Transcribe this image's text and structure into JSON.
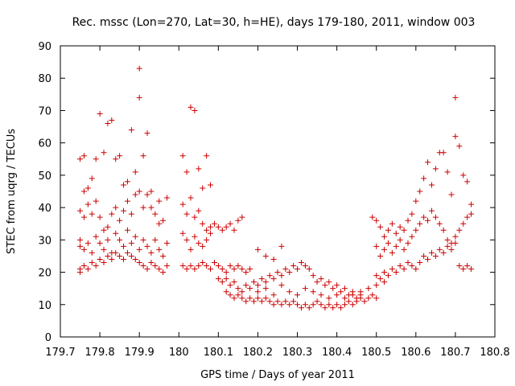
{
  "chart_data": {
    "type": "scatter",
    "title": "Rec. mssc (Lon=270, Lat=30, h=HE), days 179-180, 2011, window 003",
    "xlabel": "GPS time / Days of year 2011",
    "ylabel": "STEC from uqrg / TECUs",
    "xlim": [
      179.7,
      180.8
    ],
    "ylim": [
      0,
      90
    ],
    "x_ticks": [
      "179.7",
      "179.8",
      "179.9",
      "180",
      "180.1",
      "180.2",
      "180.3",
      "180.4",
      "180.5",
      "180.6",
      "180.7",
      "180.8"
    ],
    "y_ticks": [
      "0",
      "10",
      "20",
      "30",
      "40",
      "50",
      "60",
      "70",
      "80",
      "90"
    ],
    "grid": false,
    "legend": "none",
    "marker": "plus",
    "color": "#cc0000",
    "series": [
      {
        "points": [
          [
            179.75,
            55
          ],
          [
            179.76,
            56
          ],
          [
            179.77,
            46
          ],
          [
            179.76,
            45
          ],
          [
            179.78,
            49
          ],
          [
            179.79,
            55
          ],
          [
            179.8,
            69
          ],
          [
            179.81,
            57
          ],
          [
            179.82,
            66
          ],
          [
            179.83,
            67
          ],
          [
            179.84,
            55
          ],
          [
            179.85,
            56
          ],
          [
            179.86,
            47
          ],
          [
            179.87,
            48
          ],
          [
            179.88,
            64
          ],
          [
            179.89,
            51
          ],
          [
            179.9,
            83
          ],
          [
            179.9,
            74
          ],
          [
            179.91,
            56
          ],
          [
            179.92,
            63
          ],
          [
            179.93,
            45
          ],
          [
            179.95,
            42
          ],
          [
            179.97,
            43
          ],
          [
            179.75,
            39
          ],
          [
            179.76,
            37
          ],
          [
            179.77,
            41
          ],
          [
            179.78,
            38
          ],
          [
            179.79,
            42
          ],
          [
            179.8,
            37
          ],
          [
            179.81,
            33
          ],
          [
            179.82,
            34
          ],
          [
            179.83,
            38
          ],
          [
            179.84,
            40
          ],
          [
            179.85,
            36
          ],
          [
            179.86,
            39
          ],
          [
            179.87,
            42
          ],
          [
            179.88,
            38
          ],
          [
            179.89,
            44
          ],
          [
            179.9,
            45
          ],
          [
            179.91,
            40
          ],
          [
            179.92,
            44
          ],
          [
            179.93,
            40
          ],
          [
            179.94,
            38
          ],
          [
            179.95,
            35
          ],
          [
            179.96,
            36
          ],
          [
            179.75,
            30
          ],
          [
            179.75,
            28
          ],
          [
            179.76,
            27
          ],
          [
            179.77,
            29
          ],
          [
            179.78,
            26
          ],
          [
            179.79,
            31
          ],
          [
            179.8,
            29
          ],
          [
            179.81,
            27
          ],
          [
            179.82,
            30
          ],
          [
            179.83,
            26
          ],
          [
            179.84,
            32
          ],
          [
            179.85,
            30
          ],
          [
            179.86,
            28
          ],
          [
            179.87,
            33
          ],
          [
            179.88,
            29
          ],
          [
            179.89,
            31
          ],
          [
            179.9,
            27
          ],
          [
            179.91,
            30
          ],
          [
            179.92,
            28
          ],
          [
            179.93,
            26
          ],
          [
            179.94,
            30
          ],
          [
            179.95,
            27
          ],
          [
            179.96,
            25
          ],
          [
            179.97,
            29
          ],
          [
            179.75,
            21
          ],
          [
            179.75,
            20
          ],
          [
            179.76,
            22
          ],
          [
            179.77,
            21
          ],
          [
            179.78,
            23
          ],
          [
            179.79,
            22
          ],
          [
            179.8,
            24
          ],
          [
            179.81,
            23
          ],
          [
            179.82,
            25
          ],
          [
            179.83,
            24
          ],
          [
            179.84,
            26
          ],
          [
            179.85,
            25
          ],
          [
            179.86,
            24
          ],
          [
            179.87,
            26
          ],
          [
            179.88,
            25
          ],
          [
            179.89,
            24
          ],
          [
            179.9,
            23
          ],
          [
            179.91,
            22
          ],
          [
            179.92,
            21
          ],
          [
            179.93,
            23
          ],
          [
            179.94,
            22
          ],
          [
            179.95,
            21
          ],
          [
            179.96,
            20
          ],
          [
            179.97,
            22
          ],
          [
            180.01,
            56
          ],
          [
            180.02,
            51
          ],
          [
            180.03,
            71
          ],
          [
            180.04,
            70
          ],
          [
            180.05,
            52
          ],
          [
            180.06,
            46
          ],
          [
            180.07,
            56
          ],
          [
            180.08,
            47
          ],
          [
            180.01,
            41
          ],
          [
            180.02,
            38
          ],
          [
            180.03,
            43
          ],
          [
            180.04,
            37
          ],
          [
            180.05,
            39
          ],
          [
            180.06,
            35
          ],
          [
            180.07,
            33
          ],
          [
            180.08,
            34
          ],
          [
            180.09,
            35
          ],
          [
            180.1,
            34
          ],
          [
            180.11,
            33
          ],
          [
            180.12,
            34
          ],
          [
            180.13,
            35
          ],
          [
            180.14,
            33
          ],
          [
            180.15,
            36
          ],
          [
            180.16,
            37
          ],
          [
            180.01,
            32
          ],
          [
            180.02,
            30
          ],
          [
            180.03,
            27
          ],
          [
            180.04,
            31
          ],
          [
            180.05,
            29
          ],
          [
            180.06,
            28
          ],
          [
            180.07,
            30
          ],
          [
            180.08,
            32
          ],
          [
            180.01,
            22
          ],
          [
            180.02,
            21
          ],
          [
            180.03,
            22
          ],
          [
            180.04,
            21
          ],
          [
            180.05,
            22
          ],
          [
            180.06,
            23
          ],
          [
            180.07,
            22
          ],
          [
            180.08,
            21
          ],
          [
            180.09,
            23
          ],
          [
            180.1,
            22
          ],
          [
            180.11,
            21
          ],
          [
            180.12,
            20
          ],
          [
            180.13,
            22
          ],
          [
            180.14,
            21
          ],
          [
            180.15,
            22
          ],
          [
            180.16,
            21
          ],
          [
            180.17,
            20
          ],
          [
            180.18,
            21
          ],
          [
            180.2,
            27
          ],
          [
            180.22,
            25
          ],
          [
            180.24,
            24
          ],
          [
            180.26,
            28
          ],
          [
            180.1,
            18
          ],
          [
            180.11,
            17
          ],
          [
            180.12,
            18
          ],
          [
            180.13,
            16
          ],
          [
            180.14,
            17
          ],
          [
            180.15,
            15
          ],
          [
            180.16,
            14
          ],
          [
            180.17,
            16
          ],
          [
            180.18,
            15
          ],
          [
            180.19,
            17
          ],
          [
            180.2,
            16
          ],
          [
            180.21,
            18
          ],
          [
            180.22,
            17
          ],
          [
            180.23,
            19
          ],
          [
            180.24,
            18
          ],
          [
            180.25,
            20
          ],
          [
            180.26,
            19
          ],
          [
            180.27,
            21
          ],
          [
            180.28,
            20
          ],
          [
            180.29,
            22
          ],
          [
            180.3,
            21
          ],
          [
            180.31,
            23
          ],
          [
            180.32,
            22
          ],
          [
            180.33,
            21
          ],
          [
            180.34,
            19
          ],
          [
            180.35,
            17
          ],
          [
            180.36,
            18
          ],
          [
            180.37,
            16
          ],
          [
            180.38,
            17
          ],
          [
            180.39,
            15
          ],
          [
            180.4,
            16
          ],
          [
            180.41,
            14
          ],
          [
            180.42,
            15
          ],
          [
            180.43,
            13
          ],
          [
            180.44,
            14
          ],
          [
            180.45,
            12
          ],
          [
            180.46,
            13
          ],
          [
            180.12,
            14
          ],
          [
            180.13,
            13
          ],
          [
            180.14,
            12
          ],
          [
            180.15,
            13
          ],
          [
            180.16,
            12
          ],
          [
            180.17,
            11
          ],
          [
            180.18,
            12
          ],
          [
            180.19,
            11
          ],
          [
            180.2,
            12
          ],
          [
            180.21,
            11
          ],
          [
            180.22,
            12
          ],
          [
            180.23,
            11
          ],
          [
            180.24,
            10
          ],
          [
            180.25,
            11
          ],
          [
            180.26,
            10
          ],
          [
            180.27,
            11
          ],
          [
            180.28,
            10
          ],
          [
            180.29,
            11
          ],
          [
            180.3,
            10
          ],
          [
            180.31,
            9
          ],
          [
            180.32,
            10
          ],
          [
            180.33,
            9
          ],
          [
            180.34,
            10
          ],
          [
            180.35,
            11
          ],
          [
            180.36,
            10
          ],
          [
            180.37,
            9
          ],
          [
            180.38,
            10
          ],
          [
            180.39,
            9
          ],
          [
            180.4,
            10
          ],
          [
            180.41,
            9
          ],
          [
            180.42,
            10
          ],
          [
            180.43,
            11
          ],
          [
            180.44,
            10
          ],
          [
            180.45,
            11
          ],
          [
            180.46,
            12
          ],
          [
            180.47,
            11
          ],
          [
            180.48,
            12
          ],
          [
            180.49,
            13
          ],
          [
            180.5,
            12
          ],
          [
            180.2,
            14
          ],
          [
            180.22,
            15
          ],
          [
            180.24,
            13
          ],
          [
            180.26,
            16
          ],
          [
            180.28,
            14
          ],
          [
            180.3,
            13
          ],
          [
            180.32,
            15
          ],
          [
            180.34,
            14
          ],
          [
            180.36,
            13
          ],
          [
            180.38,
            12
          ],
          [
            180.4,
            13
          ],
          [
            180.42,
            12
          ],
          [
            180.44,
            13
          ],
          [
            180.46,
            14
          ],
          [
            180.48,
            15
          ],
          [
            180.5,
            16
          ],
          [
            180.52,
            17
          ],
          [
            180.49,
            37
          ],
          [
            180.5,
            36
          ],
          [
            180.51,
            34
          ],
          [
            180.52,
            31
          ],
          [
            180.53,
            33
          ],
          [
            180.54,
            35
          ],
          [
            180.55,
            32
          ],
          [
            180.56,
            34
          ],
          [
            180.57,
            33
          ],
          [
            180.58,
            36
          ],
          [
            180.59,
            38
          ],
          [
            180.6,
            42
          ],
          [
            180.61,
            45
          ],
          [
            180.62,
            49
          ],
          [
            180.63,
            54
          ],
          [
            180.64,
            47
          ],
          [
            180.65,
            52
          ],
          [
            180.66,
            57
          ],
          [
            180.67,
            57
          ],
          [
            180.68,
            51
          ],
          [
            180.69,
            44
          ],
          [
            180.7,
            74
          ],
          [
            180.7,
            62
          ],
          [
            180.71,
            59
          ],
          [
            180.72,
            50
          ],
          [
            180.73,
            48
          ],
          [
            180.74,
            41
          ],
          [
            180.5,
            28
          ],
          [
            180.51,
            25
          ],
          [
            180.52,
            27
          ],
          [
            180.53,
            29
          ],
          [
            180.54,
            26
          ],
          [
            180.55,
            28
          ],
          [
            180.56,
            30
          ],
          [
            180.57,
            27
          ],
          [
            180.58,
            29
          ],
          [
            180.59,
            31
          ],
          [
            180.6,
            33
          ],
          [
            180.61,
            35
          ],
          [
            180.62,
            37
          ],
          [
            180.63,
            36
          ],
          [
            180.64,
            39
          ],
          [
            180.65,
            37
          ],
          [
            180.66,
            35
          ],
          [
            180.67,
            33
          ],
          [
            180.68,
            30
          ],
          [
            180.69,
            29
          ],
          [
            180.7,
            31
          ],
          [
            180.71,
            33
          ],
          [
            180.72,
            35
          ],
          [
            180.73,
            37
          ],
          [
            180.74,
            38
          ],
          [
            180.5,
            19
          ],
          [
            180.51,
            18
          ],
          [
            180.52,
            20
          ],
          [
            180.53,
            19
          ],
          [
            180.54,
            21
          ],
          [
            180.55,
            20
          ],
          [
            180.56,
            22
          ],
          [
            180.57,
            21
          ],
          [
            180.58,
            23
          ],
          [
            180.59,
            22
          ],
          [
            180.6,
            21
          ],
          [
            180.61,
            23
          ],
          [
            180.62,
            25
          ],
          [
            180.63,
            24
          ],
          [
            180.64,
            26
          ],
          [
            180.65,
            25
          ],
          [
            180.66,
            27
          ],
          [
            180.67,
            26
          ],
          [
            180.68,
            28
          ],
          [
            180.69,
            27
          ],
          [
            180.7,
            29
          ],
          [
            180.71,
            22
          ],
          [
            180.72,
            21
          ],
          [
            180.73,
            22
          ],
          [
            180.74,
            21
          ]
        ]
      }
    ]
  }
}
